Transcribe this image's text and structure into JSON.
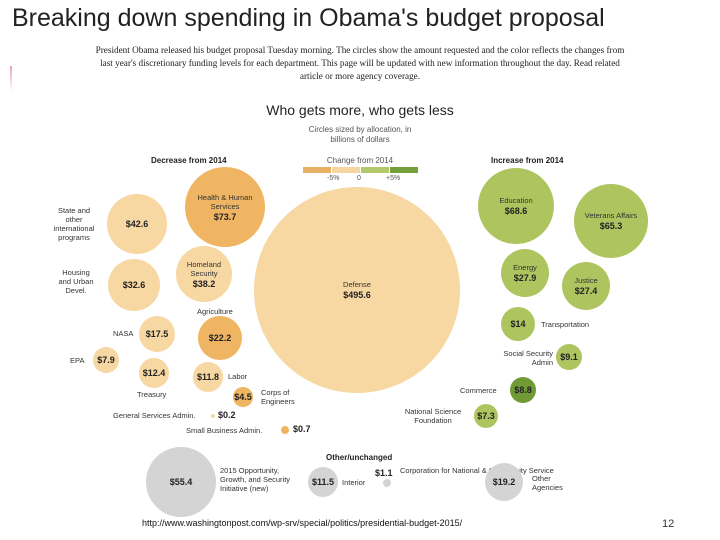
{
  "slide": {
    "title": "Breaking down spending in Obama's budget proposal",
    "intro": "President Obama released his budget proposal Tuesday morning. The circles show the amount requested and the color reflects the changes from last year's discretionary funding levels for each department. This page will be updated with new information throughout the day. Read related article or more agency coverage.",
    "source_url": "http://www.washingtonpost.com/wp-srv/special/politics/presidential-budget-2015/",
    "page_number": "12"
  },
  "chart_data": {
    "type": "bubble",
    "title": "Who gets more, who gets less",
    "note": "Circles sized by allocation, in billions of dollars",
    "unit": "billions of dollars",
    "groups": {
      "decrease": "Decrease from 2014",
      "increase": "Increase from 2014",
      "other": "Other/unchanged"
    },
    "legend": {
      "title": "Change from 2014",
      "colors": [
        "#e9b064",
        "#f6d6a0",
        "#b3c86a",
        "#74a03c"
      ],
      "labels": [
        "-5%",
        "0",
        "+5%"
      ]
    },
    "colors": {
      "decrease_large": "#efb562",
      "decrease": "#f7d7a2",
      "increase": "#aec45e",
      "increase_large": "#6f9a36",
      "other": "#d4d4d4"
    },
    "bubbles": [
      {
        "label": "Health & Human Services",
        "value": 73.7,
        "display": "$73.7",
        "group": "decrease",
        "color": "#efb562"
      },
      {
        "label": "State and other international programs",
        "value": 42.6,
        "display": "$42.6",
        "group": "decrease",
        "color": "#f7d7a2"
      },
      {
        "label": "Homeland Security",
        "value": 38.2,
        "display": "$38.2",
        "group": "decrease",
        "color": "#f7d7a2"
      },
      {
        "label": "Housing and Urban Devel.",
        "value": 32.6,
        "display": "$32.6",
        "group": "decrease",
        "color": "#f7d7a2"
      },
      {
        "label": "Agriculture",
        "value": 22.2,
        "display": "$22.2",
        "group": "decrease",
        "color": "#efb562"
      },
      {
        "label": "NASA",
        "value": 17.5,
        "display": "$17.5",
        "group": "decrease",
        "color": "#f7d7a2"
      },
      {
        "label": "EPA",
        "value": 7.9,
        "display": "$7.9",
        "group": "decrease",
        "color": "#f7d7a2"
      },
      {
        "label": "Treasury",
        "value": 12.4,
        "display": "$12.4",
        "group": "decrease",
        "color": "#f7d7a2"
      },
      {
        "label": "Labor",
        "value": 11.8,
        "display": "$11.8",
        "group": "decrease",
        "color": "#f7d7a2"
      },
      {
        "label": "Corps of Engineers",
        "value": 4.5,
        "display": "$4.5",
        "group": "decrease",
        "color": "#efb562"
      },
      {
        "label": "General Services Admin.",
        "value": 0.2,
        "display": "$0.2",
        "group": "decrease",
        "color": "#f7d7a2"
      },
      {
        "label": "Small Business Admin.",
        "value": 0.7,
        "display": "$0.7",
        "group": "decrease",
        "color": "#efb562"
      },
      {
        "label": "Defense",
        "value": 495.6,
        "display": "$495.6",
        "group": "decrease",
        "color": "#f7d7a2"
      },
      {
        "label": "Education",
        "value": 68.6,
        "display": "$68.6",
        "group": "increase",
        "color": "#aec45e"
      },
      {
        "label": "Veterans Affairs",
        "value": 65.3,
        "display": "$65.3",
        "group": "increase",
        "color": "#aec45e"
      },
      {
        "label": "Energy",
        "value": 27.9,
        "display": "$27.9",
        "group": "increase",
        "color": "#aec45e"
      },
      {
        "label": "Justice",
        "value": 27.4,
        "display": "$27.4",
        "group": "increase",
        "color": "#aec45e"
      },
      {
        "label": "Transportation",
        "value": 14,
        "display": "$14",
        "group": "increase",
        "color": "#aec45e"
      },
      {
        "label": "Social Security Admin",
        "value": 9.1,
        "display": "$9.1",
        "group": "increase",
        "color": "#aec45e"
      },
      {
        "label": "Commerce",
        "value": 8.8,
        "display": "$8.8",
        "group": "increase",
        "color": "#6f9a36"
      },
      {
        "label": "National Science Foundation",
        "value": 7.3,
        "display": "$7.3",
        "group": "increase",
        "color": "#aec45e"
      },
      {
        "label": "2015 Opportunity, Growth, and Security Initiative (new)",
        "value": 55.4,
        "display": "$55.4",
        "group": "other",
        "color": "#d4d4d4"
      },
      {
        "label": "Interior",
        "value": 11.5,
        "display": "$11.5",
        "group": "other",
        "color": "#d4d4d4"
      },
      {
        "label": "Corporation for National & Community Service",
        "value": 1.1,
        "display": "$1.1",
        "group": "other",
        "color": "#d4d4d4"
      },
      {
        "label": "Other Agencies",
        "value": 19.2,
        "display": "$19.2",
        "group": "other",
        "color": "#d4d4d4"
      }
    ]
  }
}
